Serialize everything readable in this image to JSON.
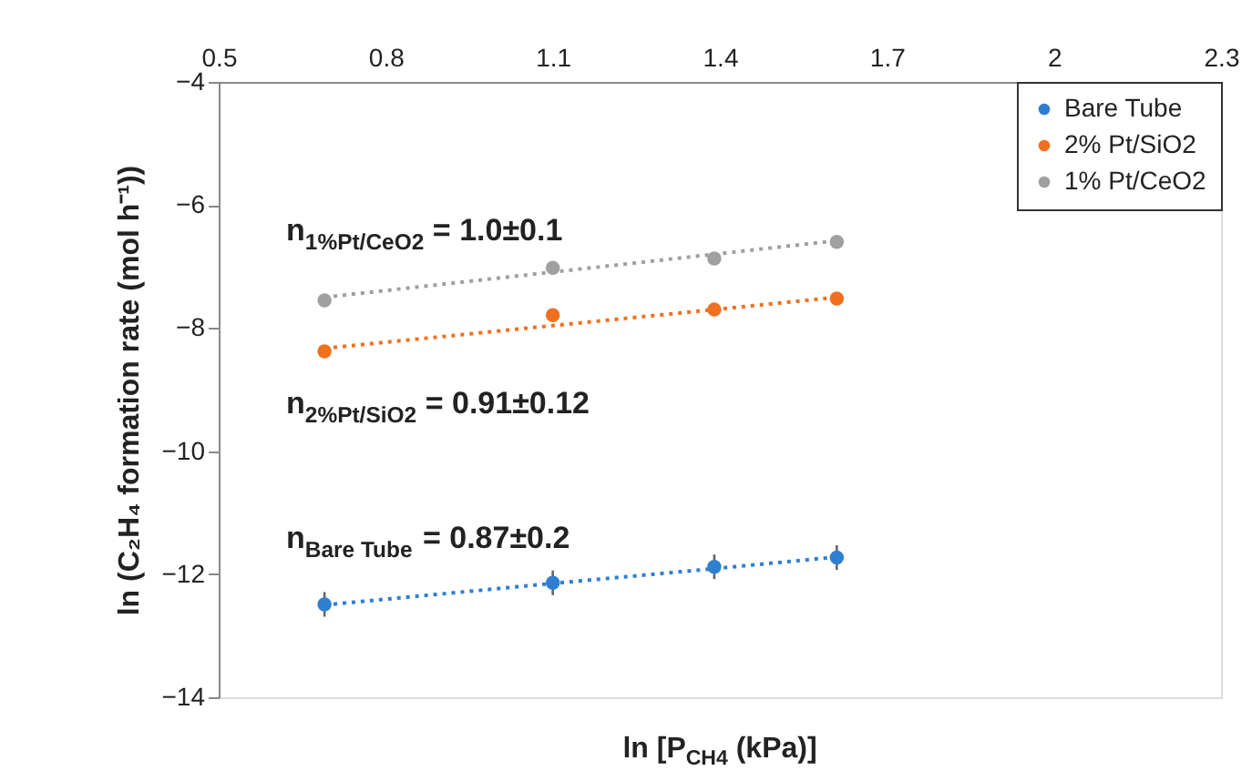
{
  "chart_data": {
    "type": "scatter",
    "xlabel": "ln [P$_{CH4}$ (kPa)]",
    "ylabel": "ln (C₂H₄ formation rate (mol h⁻¹))",
    "xlim": [
      0.5,
      2.3
    ],
    "xticks": [
      0.5,
      0.8,
      1.1,
      1.4,
      1.7,
      {
        "value": 2,
        "label": "2"
      },
      2.3
    ],
    "ylim": [
      -14,
      -4
    ],
    "yticks": [
      -14,
      -12,
      -10,
      -8,
      -6,
      -4
    ],
    "grid": false,
    "legend": "top right",
    "marker": "circle",
    "x": [
      0.69,
      1.1,
      1.39,
      1.61
    ],
    "series": [
      {
        "name": "Bare Tube",
        "color": "#2f7fd0",
        "values": [
          -12.49,
          -12.14,
          -11.88,
          -11.73
        ],
        "errors": [
          0.2,
          0.2,
          0.2,
          0.2
        ]
      },
      {
        "name": "2% Pt/SiO2",
        "color": "#f07020",
        "values": [
          -8.38,
          -7.79,
          -7.7,
          -7.52
        ]
      },
      {
        "name": "1% Pt/CeO2",
        "color": "#a0a0a0",
        "values": [
          -7.55,
          -7.02,
          -6.87,
          -6.6
        ]
      },
      {
        "type": "line",
        "line_style": "dotted",
        "marker": "none",
        "color": "#2f7fd0",
        "x": [
          0.69,
          1.1,
          1.39,
          1.61
        ],
        "values": [
          -12.5,
          -12.15,
          -11.91,
          -11.72
        ]
      },
      {
        "type": "line",
        "line_style": "dotted",
        "marker": "none",
        "color": "#f07020",
        "x": [
          0.69,
          1.1,
          1.39,
          1.61
        ],
        "values": [
          -8.33,
          -7.96,
          -7.7,
          -7.5
        ]
      },
      {
        "type": "line",
        "line_style": "dotted",
        "marker": "none",
        "color": "#a0a0a0",
        "x": [
          0.69,
          1.1,
          1.39,
          1.61
        ],
        "values": [
          -7.5,
          -7.09,
          -6.8,
          -6.58
        ]
      }
    ],
    "annotations": [
      "n$_{1%Pt/CeO2}$ = 1.0±0.1",
      "n$_{2%Pt/SiO2}$ = 0.91±0.12",
      "n$_{Bare Tube}$ = 0.87±0.2"
    ]
  }
}
